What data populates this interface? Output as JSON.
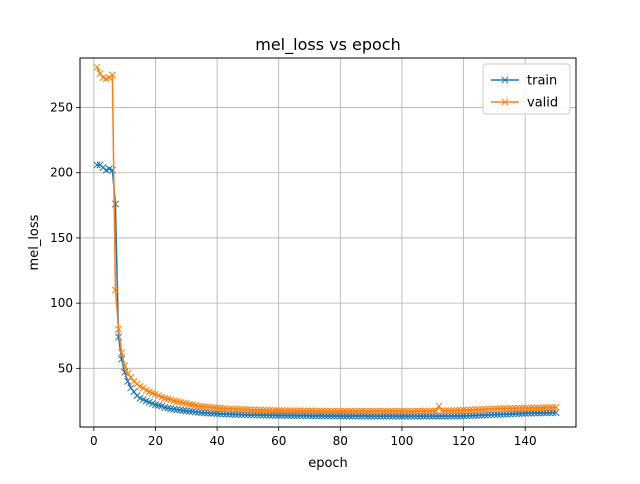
{
  "chart_data": {
    "type": "line",
    "title": "mel_loss vs epoch",
    "xlabel": "epoch",
    "ylabel": "mel_loss",
    "xlim": [
      -4.5,
      156.5
    ],
    "ylim": [
      5,
      288
    ],
    "grid": true,
    "legend_position": "upper right",
    "xticks": [
      0,
      20,
      40,
      60,
      80,
      100,
      120,
      140
    ],
    "yticks": [
      50,
      100,
      150,
      200,
      250
    ],
    "marker": "x",
    "series": [
      {
        "name": "train",
        "color": "#1f77b4",
        "x": [
          1,
          2,
          3,
          4,
          5,
          6,
          7,
          8,
          9,
          10,
          11,
          12,
          13,
          14,
          15,
          16,
          17,
          18,
          19,
          20,
          21,
          22,
          23,
          24,
          25,
          26,
          27,
          28,
          29,
          30,
          31,
          32,
          33,
          34,
          35,
          36,
          37,
          38,
          39,
          40,
          41,
          42,
          43,
          44,
          45,
          46,
          47,
          48,
          49,
          50,
          51,
          52,
          53,
          54,
          55,
          56,
          57,
          58,
          59,
          60,
          61,
          62,
          63,
          64,
          65,
          66,
          67,
          68,
          69,
          70,
          71,
          72,
          73,
          74,
          75,
          76,
          77,
          78,
          79,
          80,
          81,
          82,
          83,
          84,
          85,
          86,
          87,
          88,
          89,
          90,
          91,
          92,
          93,
          94,
          95,
          96,
          97,
          98,
          99,
          100,
          101,
          102,
          103,
          104,
          105,
          106,
          107,
          108,
          109,
          110,
          111,
          112,
          113,
          114,
          115,
          116,
          117,
          118,
          119,
          120,
          121,
          122,
          123,
          124,
          125,
          126,
          127,
          128,
          129,
          130,
          131,
          132,
          133,
          134,
          135,
          136,
          137,
          138,
          139,
          140,
          141,
          142,
          143,
          144,
          145,
          146,
          147,
          148,
          149,
          150
        ],
        "y": [
          206,
          206,
          204,
          202,
          203,
          202,
          176,
          74,
          57,
          47,
          40,
          35,
          32,
          29,
          27,
          26,
          25,
          24,
          23,
          22,
          21.5,
          21,
          20,
          19.5,
          19,
          18.7,
          18.3,
          18,
          17.6,
          17.3,
          17,
          16.8,
          16.5,
          16.3,
          16,
          15.8,
          15.7,
          15.5,
          15.4,
          15.3,
          15.1,
          15,
          14.9,
          14.8,
          14.7,
          14.6,
          14.6,
          14.5,
          14.4,
          14.4,
          14.3,
          14.3,
          14.2,
          14.2,
          14.1,
          14.1,
          14,
          14,
          14,
          13.9,
          13.9,
          13.9,
          13.8,
          13.8,
          13.8,
          13.7,
          13.7,
          13.7,
          13.7,
          13.6,
          13.6,
          13.6,
          13.6,
          13.6,
          13.5,
          13.5,
          13.5,
          13.5,
          13.5,
          13.5,
          13.4,
          13.4,
          13.4,
          13.4,
          13.4,
          13.4,
          13.4,
          13.4,
          13.3,
          13.3,
          13.3,
          13.3,
          13.3,
          13.3,
          13.3,
          13.3,
          13.3,
          13.3,
          13.3,
          13.3,
          13.3,
          13.3,
          13.3,
          13.3,
          13.3,
          13.3,
          13.3,
          13.3,
          13.3,
          13.3,
          13.3,
          13.3,
          13.3,
          13.3,
          13.3,
          13.4,
          13.4,
          13.5,
          13.5,
          13.6,
          13.6,
          13.7,
          13.8,
          13.9,
          14,
          14.1,
          14.2,
          14.3,
          14.4,
          14.5,
          14.6,
          14.7,
          14.8,
          14.9,
          15,
          15.1,
          15.2,
          15.3,
          15.4,
          15.5,
          15.6,
          15.6,
          15.7,
          15.7,
          15.8,
          15.8,
          15.9,
          15.9,
          16,
          16
        ]
      },
      {
        "name": "valid",
        "color": "#ff7f0e",
        "x": [
          1,
          2,
          3,
          4,
          5,
          6,
          7,
          8,
          9,
          10,
          11,
          12,
          13,
          14,
          15,
          16,
          17,
          18,
          19,
          20,
          21,
          22,
          23,
          24,
          25,
          26,
          27,
          28,
          29,
          30,
          31,
          32,
          33,
          34,
          35,
          36,
          37,
          38,
          39,
          40,
          41,
          42,
          43,
          44,
          45,
          46,
          47,
          48,
          49,
          50,
          51,
          52,
          53,
          54,
          55,
          56,
          57,
          58,
          59,
          60,
          61,
          62,
          63,
          64,
          65,
          66,
          67,
          68,
          69,
          70,
          71,
          72,
          73,
          74,
          75,
          76,
          77,
          78,
          79,
          80,
          81,
          82,
          83,
          84,
          85,
          86,
          87,
          88,
          89,
          90,
          91,
          92,
          93,
          94,
          95,
          96,
          97,
          98,
          99,
          100,
          101,
          102,
          103,
          104,
          105,
          106,
          107,
          108,
          109,
          110,
          111,
          112,
          113,
          114,
          115,
          116,
          117,
          118,
          119,
          120,
          121,
          122,
          123,
          124,
          125,
          126,
          127,
          128,
          129,
          130,
          131,
          132,
          133,
          134,
          135,
          136,
          137,
          138,
          139,
          140,
          141,
          142,
          143,
          144,
          145,
          146,
          147,
          148,
          149,
          150
        ],
        "y": [
          281,
          276,
          273,
          272,
          273,
          275,
          110,
          80,
          62,
          52,
          46,
          43,
          40,
          38,
          36,
          35,
          33,
          32,
          31,
          30,
          29,
          28,
          27,
          26.5,
          26,
          25,
          24.5,
          24,
          23.5,
          23,
          22.5,
          22,
          21.5,
          21,
          20.8,
          20.5,
          20.2,
          20,
          19.8,
          19.6,
          19.4,
          19.2,
          19,
          18.9,
          18.8,
          18.7,
          18.6,
          18.5,
          18.4,
          18.3,
          18.2,
          18.1,
          18,
          18,
          17.9,
          17.8,
          17.8,
          17.7,
          17.7,
          17.6,
          17.6,
          17.5,
          17.5,
          17.5,
          17.4,
          17.4,
          17.4,
          17.3,
          17.3,
          17.3,
          17.3,
          17.2,
          17.2,
          17.2,
          17.2,
          17.2,
          17.1,
          17.1,
          17.1,
          17.1,
          17.1,
          17.1,
          17.1,
          17.1,
          17.1,
          17.1,
          17.1,
          17.1,
          17.1,
          17.1,
          17.1,
          17.1,
          17.1,
          17.1,
          17.1,
          17.1,
          17.1,
          17.1,
          17.1,
          17.1,
          17.1,
          17.1,
          17.1,
          17.1,
          17.2,
          17.2,
          17.2,
          17.2,
          17.2,
          17.3,
          17.3,
          21,
          17.4,
          17.4,
          17.5,
          17.5,
          17.6,
          17.7,
          17.8,
          17.9,
          18,
          18.1,
          18.2,
          18.3,
          18.4,
          18.5,
          18.6,
          18.7,
          18.8,
          18.9,
          19,
          19.1,
          19.1,
          19.2,
          19.2,
          19.3,
          19.3,
          19.4,
          19.4,
          19.5,
          19.5,
          19.6,
          19.6,
          19.7,
          19.7,
          19.8,
          19.8,
          19.9,
          19.9,
          20
        ]
      }
    ]
  }
}
